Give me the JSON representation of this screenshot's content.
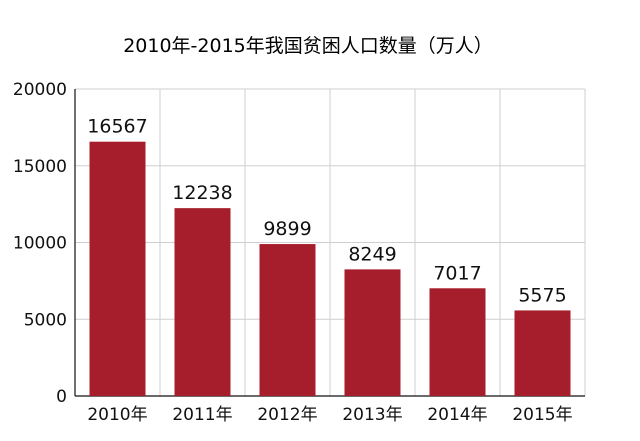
{
  "chart_data": {
    "type": "bar",
    "title": "2010年-2015年我国贫困人口数量（万人）",
    "xlabel": "",
    "ylabel": "",
    "categories": [
      "2010年",
      "2011年",
      "2012年",
      "2013年",
      "2014年",
      "2015年"
    ],
    "values": [
      16567,
      12238,
      9899,
      8249,
      7017,
      5575
    ],
    "ylim": [
      0,
      20000
    ],
    "yticks": [
      0,
      5000,
      10000,
      15000,
      20000
    ],
    "grid": true,
    "legend": "none",
    "bar_color": "#A61E2B",
    "grid_color": "#cfcfcf"
  }
}
